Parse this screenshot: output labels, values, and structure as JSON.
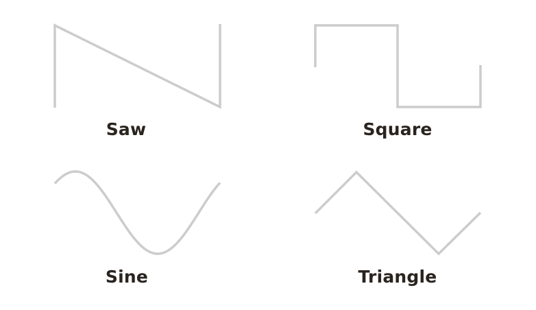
{
  "colors": {
    "stroke": "#cccccc",
    "label": "#2a241f",
    "background": "#ffffff"
  },
  "waveforms": [
    {
      "id": "saw",
      "label": "Saw"
    },
    {
      "id": "square",
      "label": "Square"
    },
    {
      "id": "sine",
      "label": "Sine"
    },
    {
      "id": "triangle",
      "label": "Triangle"
    }
  ]
}
